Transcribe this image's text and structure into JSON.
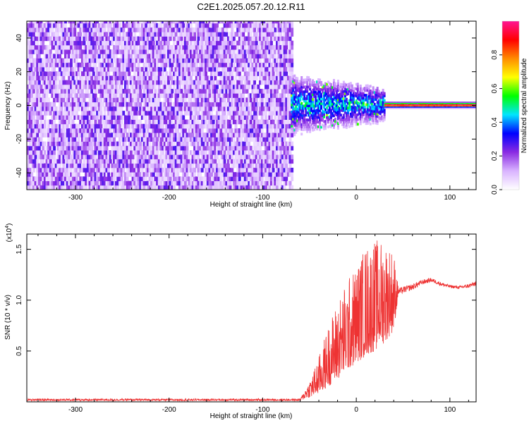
{
  "title": "C2E1.2025.057.20.12.R11",
  "chart_data": [
    {
      "type": "heatmap",
      "xlabel": "Height of straight line (km)",
      "ylabel": "Frequency (Hz)",
      "xlim": [
        -352,
        128
      ],
      "ylim": [
        -50,
        50
      ],
      "xticks": [
        -300,
        -200,
        -100,
        0,
        100
      ],
      "xtick_labels": [
        "-300",
        "-200",
        "-100",
        "0",
        "100"
      ],
      "yticks": [
        -40,
        -20,
        0,
        20,
        40
      ],
      "ytick_labels": [
        "-40",
        "-20",
        "0",
        "20",
        "40"
      ],
      "grid": false,
      "colorbar": {
        "label": "Normalized spectral amplitude",
        "range": [
          0,
          1
        ],
        "ticks": [
          0.0,
          0.2,
          0.4,
          0.6,
          0.8
        ],
        "tick_labels": [
          "0.0",
          "0.2",
          "0.4",
          "0.6",
          "0.8"
        ],
        "colors": [
          "#ffffff",
          "#d9b3ff",
          "#8a2be2",
          "#0000ff",
          "#00e5ff",
          "#00ff00",
          "#ffff00",
          "#ff8c00",
          "#ff0000",
          "#ff1493"
        ]
      },
      "regions": [
        {
          "x_range": [
            -352,
            -70
          ],
          "freq_range": [
            -50,
            50
          ],
          "amplitude": 0.2
        },
        {
          "x_range": [
            -70,
            30
          ],
          "freq_range": [
            -15,
            15
          ],
          "amplitude": 0.35
        },
        {
          "x_range": [
            30,
            128
          ],
          "freq_range": [
            -1,
            1
          ],
          "amplitude": 0.95
        }
      ]
    },
    {
      "type": "line",
      "xlabel": "Height of straight line (km)",
      "ylabel": "SNR (10 * v/v)",
      "y_multiplier_label": "(x10",
      "y_multiplier_exponent": "4",
      "xlim": [
        -352,
        128
      ],
      "ylim": [
        0,
        1.65
      ],
      "xticks": [
        -300,
        -200,
        -100,
        0,
        100
      ],
      "xtick_labels": [
        "-300",
        "-200",
        "-100",
        "0",
        "100"
      ],
      "yticks": [
        0.5,
        1.0,
        1.5
      ],
      "ytick_labels": [
        "0.5",
        "1.0",
        "1.5"
      ],
      "grid": false,
      "series_color": "#ee3333",
      "envelope": {
        "x": [
          -352,
          -60,
          -50,
          -40,
          -30,
          -20,
          -10,
          0,
          10,
          20,
          30,
          40,
          45,
          60,
          70,
          80,
          90,
          100,
          110,
          120,
          128
        ],
        "y_low": [
          0.01,
          0.01,
          0.04,
          0.08,
          0.15,
          0.22,
          0.3,
          0.38,
          0.45,
          0.5,
          0.58,
          0.7,
          1.05,
          1.1,
          1.15,
          1.18,
          1.14,
          1.12,
          1.11,
          1.12,
          1.14
        ],
        "y_high": [
          0.03,
          0.03,
          0.2,
          0.45,
          0.75,
          1.0,
          1.2,
          1.35,
          1.55,
          1.6,
          1.6,
          1.5,
          1.12,
          1.16,
          1.2,
          1.22,
          1.18,
          1.15,
          1.14,
          1.16,
          1.19
        ]
      }
    }
  ]
}
